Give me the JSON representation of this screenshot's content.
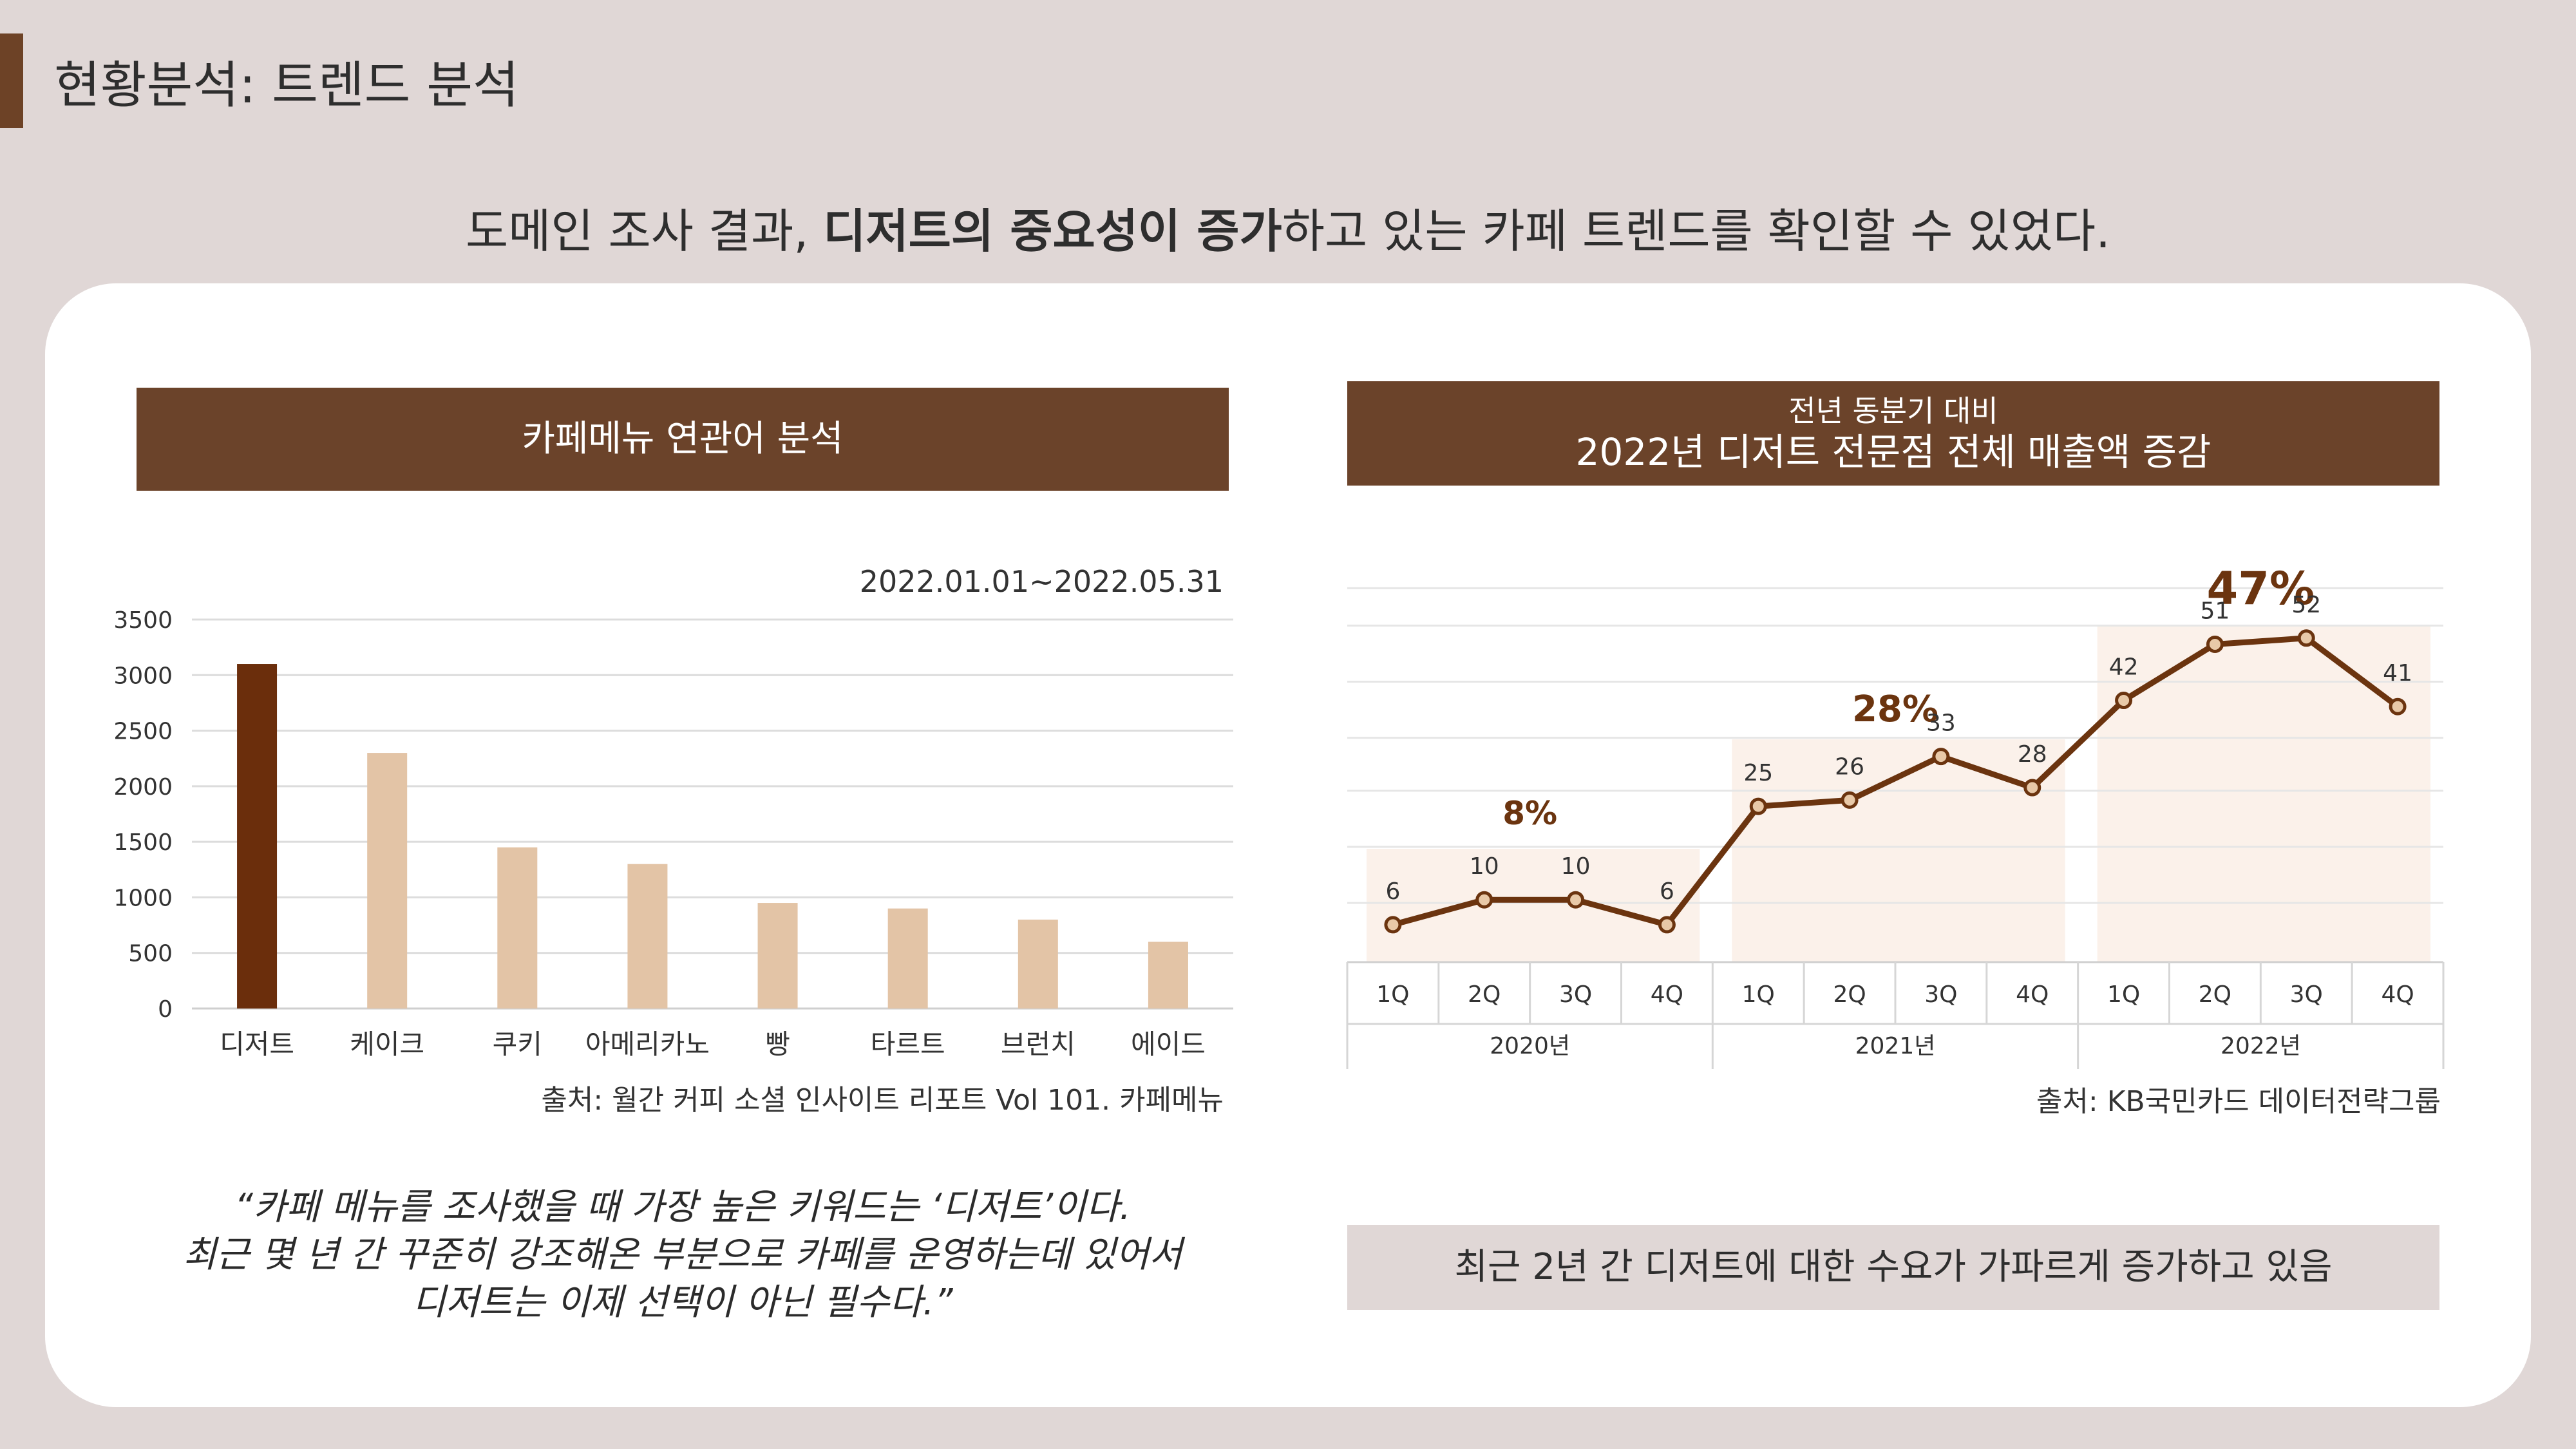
{
  "page_title": "현황분석: 트렌드 분석",
  "headline": {
    "pre": "도메인 조사 결과, ",
    "bold": "디저트의 중요성이 증가",
    "post": "하고 있는 카페 트렌드를 확인할 수 있었다."
  },
  "left_panel": {
    "banner": "카페메뉴 연관어 분석",
    "date_range": "2022.01.01~2022.05.31",
    "source": "출처: 월간 커피 소셜 인사이트 리포트 Vol 101. 카페메뉴",
    "quote": [
      "“카페 메뉴를 조사했을 때 가장 높은 키워드는 ‘디저트’이다.",
      "최근 몇 년 간 꾸준히 강조해온 부분으로 카페를 운영하는데 있어서",
      "디저트는 이제 선택이 아닌 필수다.”"
    ]
  },
  "right_panel": {
    "banner_sub": "전년 동분기 대비",
    "banner_main": "2022년 디저트 전문점 전체 매출액 증감",
    "source": "출처: KB국민카드 데이터전략그룹",
    "summary": "최근 2년 간 디저트에 대한 수요가 가파르게 증가하고 있음"
  },
  "colors": {
    "accent": "#6b432a",
    "bar_highlight": "#6b2e0c",
    "bar_normal": "#e3c4a6",
    "line": "#6b340f",
    "marker_fill": "#e8c9a8",
    "year_band": "#fbf1ea",
    "background": "#e0d7d6"
  },
  "chart_data": [
    {
      "type": "bar",
      "categories": [
        "디저트",
        "케이크",
        "쿠키",
        "아메리카노",
        "빵",
        "타르트",
        "브런치",
        "에이드"
      ],
      "values": [
        3100,
        2300,
        1450,
        1300,
        950,
        900,
        800,
        600
      ],
      "highlight_index": 0,
      "title": "",
      "xlabel": "",
      "ylabel": "",
      "ylim": [
        0,
        3500
      ],
      "yticks": [
        0,
        500,
        1000,
        1500,
        2000,
        2500,
        3000,
        3500
      ],
      "grid": true
    },
    {
      "type": "line",
      "quarters": [
        "1Q",
        "2Q",
        "3Q",
        "4Q",
        "1Q",
        "2Q",
        "3Q",
        "4Q",
        "1Q",
        "2Q",
        "3Q",
        "4Q"
      ],
      "years": [
        "2020년",
        "2021년",
        "2022년"
      ],
      "values": [
        6,
        10,
        10,
        6,
        25,
        26,
        33,
        28,
        42,
        51,
        52,
        41
      ],
      "year_labels": [
        "8%",
        "28%",
        "47%"
      ],
      "title": "",
      "ylim": [
        0,
        62
      ],
      "grid": true,
      "axis_labels_shown": false
    }
  ]
}
